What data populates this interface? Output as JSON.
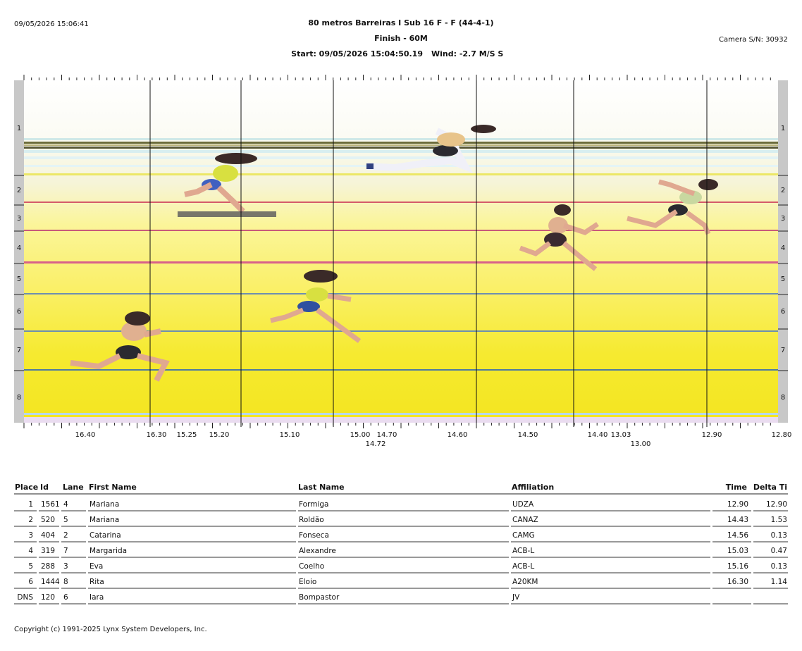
{
  "header": {
    "timestamp": "09/05/2026 15:06:41",
    "title": "80 metros Barreiras I Sub 16 F - F (44-4-1)",
    "subtitle": "Finish - 60M",
    "start": "Start: 09/05/2026 15:04:50.19",
    "wind": "Wind: -2.7 M/S S",
    "camera": "Camera S/N: 30932"
  },
  "photo": {
    "lane_labels": [
      "1",
      "2",
      "3",
      "4",
      "5",
      "6",
      "7",
      "8"
    ],
    "time_labels": [
      "16.40",
      "16.30",
      "15.25",
      "15.20",
      "15.10",
      "15.00",
      "14.70",
      "14.72",
      "14.60",
      "14.50",
      "14.40",
      "13.03",
      "13.00",
      "12.90",
      "12.80"
    ]
  },
  "table": {
    "columns": [
      "Place",
      "Id",
      "Lane",
      "First Name",
      "Last Name",
      "Affiliation",
      "Time",
      "Delta Ti"
    ],
    "rows": [
      [
        "1",
        "1561",
        "4",
        "Mariana",
        "Formiga",
        "UDZA",
        "12.90",
        "12.90"
      ],
      [
        "2",
        "520",
        "5",
        "Mariana",
        "Roldão",
        "CANAZ",
        "14.43",
        "1.53"
      ],
      [
        "3",
        "404",
        "2",
        "Catarina",
        "Fonseca",
        "CAMG",
        "14.56",
        "0.13"
      ],
      [
        "4",
        "319",
        "7",
        "Margarida",
        "Alexandre",
        "ACB-L",
        "15.03",
        "0.47"
      ],
      [
        "5",
        "288",
        "3",
        "Eva",
        "Coelho",
        "ACB-L",
        "15.16",
        "0.13"
      ],
      [
        "6",
        "1444",
        "8",
        "Rita",
        "Eloio",
        "A20KM",
        "16.30",
        "1.14"
      ],
      [
        "DNS",
        "120",
        "6",
        "Iara",
        "Bompastor",
        "JV"
      ]
    ]
  },
  "footer": "Copyright (c) 1991-2025 Lynx System Developers, Inc."
}
